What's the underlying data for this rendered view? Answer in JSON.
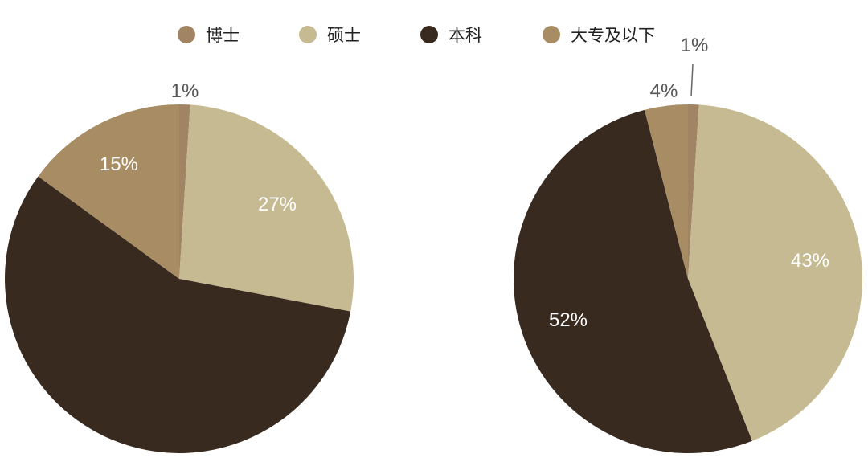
{
  "colors": {
    "doctor": "#a08464",
    "master": "#c6ba92",
    "bachelor": "#392a20",
    "college": "#a88c63",
    "label_dark": "#555555",
    "label_light": "#ffffff",
    "leader": "#666666"
  },
  "chart_data": [
    {
      "type": "pie",
      "title": "",
      "legend": "top",
      "labels": [
        "博士",
        "硕士",
        "本科",
        "大专及以下"
      ],
      "values": [
        1,
        27,
        57,
        15
      ],
      "data_labels": [
        "1%",
        "27%",
        "",
        "15%"
      ],
      "start_angle_deg": 0,
      "direction": "clockwise"
    },
    {
      "type": "pie",
      "title": "",
      "legend": "top",
      "labels": [
        "博士",
        "硕士",
        "本科",
        "大专及以下"
      ],
      "values": [
        1,
        43,
        52,
        4
      ],
      "data_labels": [
        "1%",
        "43%",
        "52%",
        "4%"
      ],
      "start_angle_deg": 0,
      "direction": "clockwise"
    }
  ],
  "legend": {
    "items": [
      {
        "label": "博士",
        "color_key": "doctor"
      },
      {
        "label": "硕士",
        "color_key": "master"
      },
      {
        "label": "本科",
        "color_key": "bachelor"
      },
      {
        "label": "大专及以下",
        "color_key": "college"
      }
    ]
  }
}
